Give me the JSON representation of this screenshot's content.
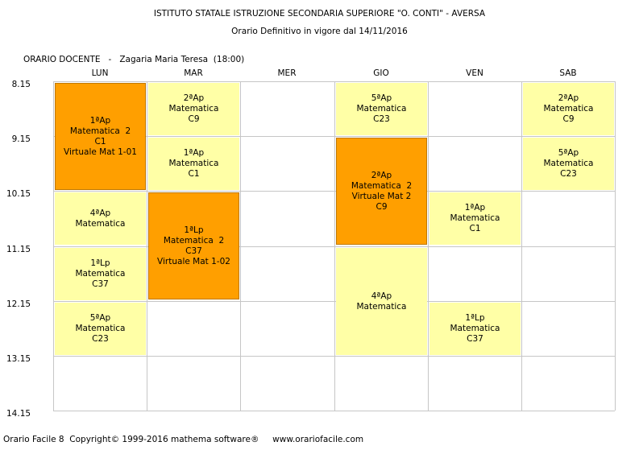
{
  "header": {
    "school": "ISTITUTO STATALE ISTRUZIONE SECONDARIA SUPERIORE \"O. CONTI\" - AVERSA",
    "subtitle": "Orario Definitivo in vigore dal 14/11/2016"
  },
  "teacher_line": "ORARIO DOCENTE   -   Zagaria Maria Teresa  (18:00)",
  "days": [
    "LUN",
    "MAR",
    "MER",
    "GIO",
    "VEN",
    "SAB"
  ],
  "times": [
    "8.15",
    "9.15",
    "10.15",
    "11.15",
    "12.15",
    "13.15",
    "14.15"
  ],
  "colors": {
    "single_lesson": "#ffffa6",
    "double_lesson": "#ff9f00",
    "grid": "#c6c6c6"
  },
  "lessons": [
    {
      "day": 0,
      "start": 0,
      "span": 2,
      "style": "dark",
      "lines": [
        "1ªAp",
        "Matematica  2",
        "C1",
        "Virtuale Mat 1-01"
      ]
    },
    {
      "day": 0,
      "start": 2,
      "span": 1,
      "style": "light",
      "lines": [
        "4ªAp",
        "Matematica"
      ]
    },
    {
      "day": 0,
      "start": 3,
      "span": 1,
      "style": "light",
      "lines": [
        "1ªLp",
        "Matematica",
        "C37"
      ]
    },
    {
      "day": 0,
      "start": 4,
      "span": 1,
      "style": "light",
      "lines": [
        "5ªAp",
        "Matematica",
        "C23"
      ]
    },
    {
      "day": 1,
      "start": 0,
      "span": 1,
      "style": "light",
      "lines": [
        "2ªAp",
        "Matematica",
        "C9"
      ]
    },
    {
      "day": 1,
      "start": 1,
      "span": 1,
      "style": "light",
      "lines": [
        "1ªAp",
        "Matematica",
        "C1"
      ]
    },
    {
      "day": 1,
      "start": 2,
      "span": 2,
      "style": "dark",
      "lines": [
        "1ªLp",
        "Matematica  2",
        "C37",
        "Virtuale Mat 1-02"
      ]
    },
    {
      "day": 3,
      "start": 0,
      "span": 1,
      "style": "light",
      "lines": [
        "5ªAp",
        "Matematica",
        "C23"
      ]
    },
    {
      "day": 3,
      "start": 1,
      "span": 2,
      "style": "dark",
      "lines": [
        "2ªAp",
        "Matematica  2",
        "Virtuale Mat 2",
        "C9"
      ]
    },
    {
      "day": 3,
      "start": 3,
      "span": 2,
      "style": "light",
      "lines": [
        "4ªAp",
        "Matematica"
      ]
    },
    {
      "day": 4,
      "start": 2,
      "span": 1,
      "style": "light",
      "lines": [
        "1ªAp",
        "Matematica",
        "C1"
      ]
    },
    {
      "day": 4,
      "start": 4,
      "span": 1,
      "style": "light",
      "lines": [
        "1ªLp",
        "Matematica",
        "C37"
      ]
    },
    {
      "day": 5,
      "start": 0,
      "span": 1,
      "style": "light",
      "lines": [
        "2ªAp",
        "Matematica",
        "C9"
      ]
    },
    {
      "day": 5,
      "start": 1,
      "span": 1,
      "style": "light",
      "lines": [
        "5ªAp",
        "Matematica",
        "C23"
      ]
    }
  ],
  "footer": "Orario Facile 8  Copyright© 1999-2016 mathema software®     www.orariofacile.com"
}
